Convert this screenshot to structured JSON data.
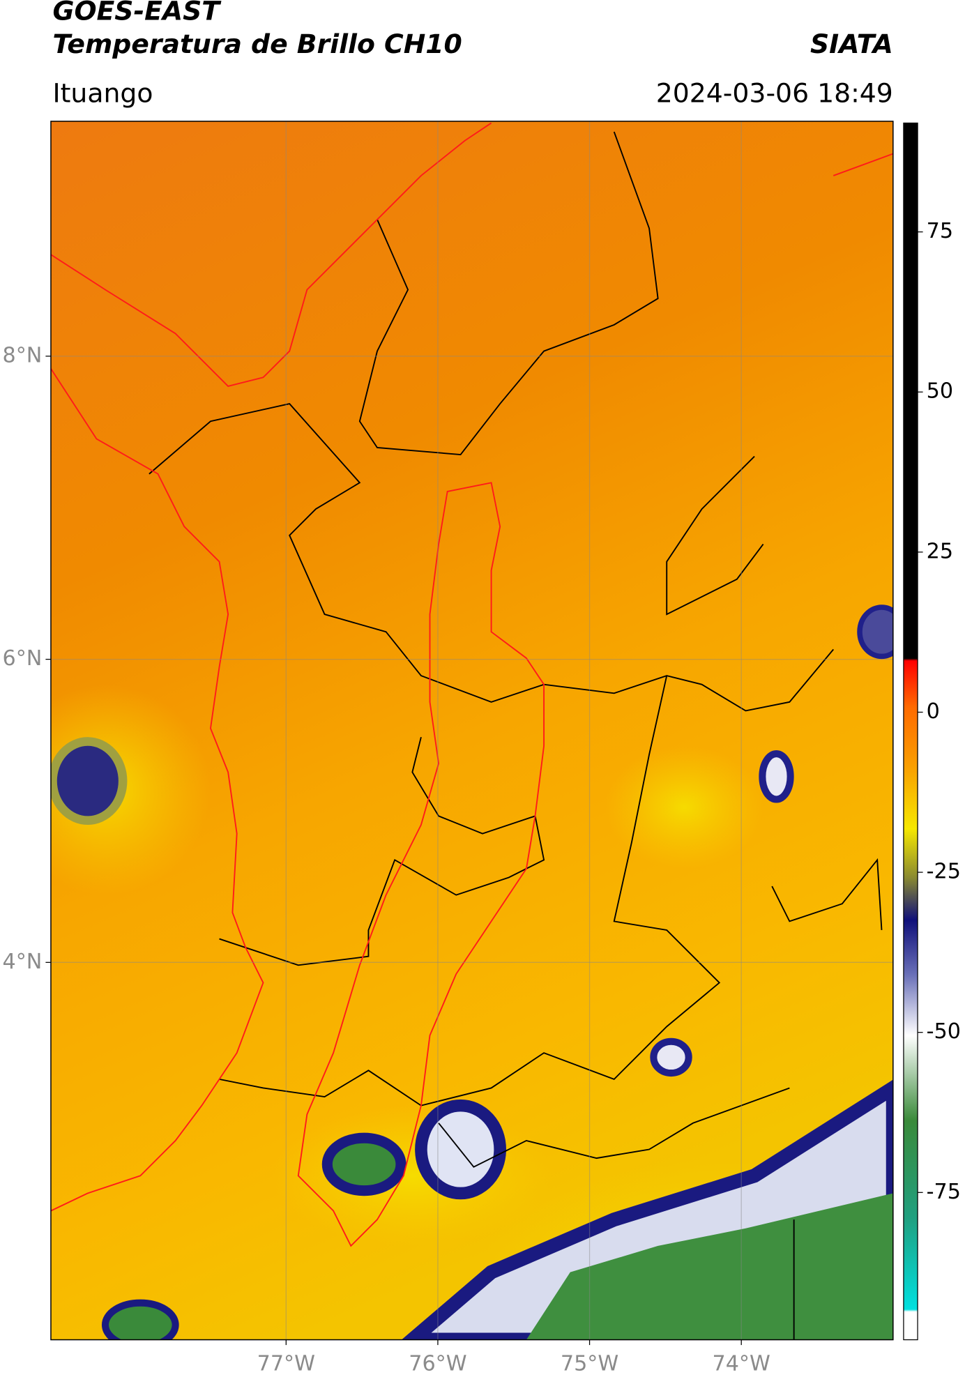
{
  "header": {
    "title": "GOES-EAST",
    "subtitle": "Temperatura de Brillo CH10",
    "source": "SIATA",
    "location": "Ituango",
    "timestamp": "2024-03-06 18:49"
  },
  "map": {
    "xlim": [
      -78.55,
      -73.0
    ],
    "ylim": [
      1.51,
      9.55
    ],
    "xticks": [
      {
        "value": -77,
        "label": "77°W"
      },
      {
        "value": -76,
        "label": "76°W"
      },
      {
        "value": -75,
        "label": "75°W"
      },
      {
        "value": -74,
        "label": "74°W"
      }
    ],
    "yticks": [
      {
        "value": 8,
        "label": "8°N"
      },
      {
        "value": 6,
        "label": "6°N"
      },
      {
        "value": 4,
        "label": "4°N"
      }
    ],
    "grid": true
  },
  "colorbar": {
    "lim": [
      -98,
      92
    ],
    "ticks": [
      -75,
      -50,
      -25,
      0,
      25,
      50,
      75
    ]
  }
}
